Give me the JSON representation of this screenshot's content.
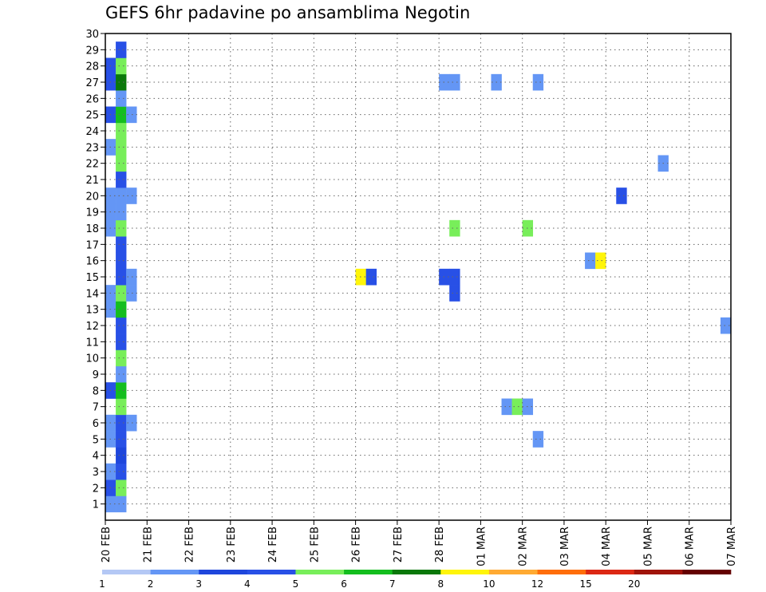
{
  "chart_data": {
    "type": "heatmap",
    "title": "GEFS 6hr padavine po ansamblima Negotin",
    "xlabel": "",
    "ylabel": "",
    "x_tick_labels": [
      "20 FEB",
      "21 FEB",
      "22 FEB",
      "23 FEB",
      "24 FEB",
      "25 FEB",
      "26 FEB",
      "27 FEB",
      "28 FEB",
      "01 MAR",
      "02 MAR",
      "03 MAR",
      "04 MAR",
      "05 MAR",
      "06 MAR",
      "07 MAR"
    ],
    "y_tick_labels": [
      "1",
      "2",
      "3",
      "4",
      "5",
      "6",
      "7",
      "8",
      "9",
      "10",
      "11",
      "12",
      "13",
      "14",
      "15",
      "16",
      "17",
      "18",
      "19",
      "20",
      "21",
      "22",
      "23",
      "24",
      "25",
      "26",
      "27",
      "28",
      "29",
      "30"
    ],
    "xlim": [
      0,
      60
    ],
    "ylim": [
      0,
      30
    ],
    "x_unit": "6-hour step from 20 FEB 00z",
    "y_unit": "ensemble member",
    "grid": true,
    "colorbar": {
      "labels": [
        "1",
        "2",
        "3",
        "4",
        "5",
        "6",
        "7",
        "8",
        "10",
        "12",
        "15",
        "20"
      ],
      "colors": [
        "#b4c8f5",
        "#6496f5",
        "#1e46dc",
        "#2850e6",
        "#78ee5a",
        "#14be1e",
        "#0a780a",
        "#fff50a",
        "#ffaa32",
        "#ff6e0a",
        "#dc2814",
        "#a0140a",
        "#640000"
      ]
    },
    "cells": [
      {
        "x": 0,
        "y": 1,
        "v": 1
      },
      {
        "x": 1,
        "y": 1,
        "v": 1
      },
      {
        "x": 0,
        "y": 2,
        "v": 3
      },
      {
        "x": 1,
        "y": 2,
        "v": 4
      },
      {
        "x": 0,
        "y": 3,
        "v": 1
      },
      {
        "x": 1,
        "y": 3,
        "v": 3
      },
      {
        "x": 1,
        "y": 4,
        "v": 2
      },
      {
        "x": 0,
        "y": 5,
        "v": 1
      },
      {
        "x": 1,
        "y": 5,
        "v": 3
      },
      {
        "x": 0,
        "y": 6,
        "v": 1
      },
      {
        "x": 1,
        "y": 6,
        "v": 3
      },
      {
        "x": 2,
        "y": 6,
        "v": 1
      },
      {
        "x": 1,
        "y": 7,
        "v": 4
      },
      {
        "x": 0,
        "y": 8,
        "v": 3
      },
      {
        "x": 1,
        "y": 8,
        "v": 5
      },
      {
        "x": 1,
        "y": 9,
        "v": 1
      },
      {
        "x": 1,
        "y": 10,
        "v": 4
      },
      {
        "x": 1,
        "y": 11,
        "v": 3
      },
      {
        "x": 1,
        "y": 12,
        "v": 3
      },
      {
        "x": 0,
        "y": 13,
        "v": 1
      },
      {
        "x": 1,
        "y": 13,
        "v": 5
      },
      {
        "x": 0,
        "y": 14,
        "v": 1
      },
      {
        "x": 1,
        "y": 14,
        "v": 4
      },
      {
        "x": 2,
        "y": 14,
        "v": 1
      },
      {
        "x": 1,
        "y": 15,
        "v": 3
      },
      {
        "x": 2,
        "y": 15,
        "v": 1
      },
      {
        "x": 1,
        "y": 16,
        "v": 3
      },
      {
        "x": 1,
        "y": 17,
        "v": 3
      },
      {
        "x": 0,
        "y": 18,
        "v": 1
      },
      {
        "x": 1,
        "y": 18,
        "v": 4
      },
      {
        "x": 0,
        "y": 19,
        "v": 1
      },
      {
        "x": 1,
        "y": 19,
        "v": 1
      },
      {
        "x": 0,
        "y": 20,
        "v": 1
      },
      {
        "x": 1,
        "y": 20,
        "v": 1
      },
      {
        "x": 2,
        "y": 20,
        "v": 1
      },
      {
        "x": 1,
        "y": 21,
        "v": 3
      },
      {
        "x": 1,
        "y": 22,
        "v": 4
      },
      {
        "x": 0,
        "y": 23,
        "v": 1
      },
      {
        "x": 1,
        "y": 23,
        "v": 4
      },
      {
        "x": 1,
        "y": 24,
        "v": 4
      },
      {
        "x": 0,
        "y": 25,
        "v": 3
      },
      {
        "x": 1,
        "y": 25,
        "v": 5
      },
      {
        "x": 2,
        "y": 25,
        "v": 1
      },
      {
        "x": 1,
        "y": 26,
        "v": 1
      },
      {
        "x": 0,
        "y": 27,
        "v": 3
      },
      {
        "x": 1,
        "y": 27,
        "v": 6
      },
      {
        "x": 0,
        "y": 28,
        "v": 3
      },
      {
        "x": 1,
        "y": 28,
        "v": 4
      },
      {
        "x": 1,
        "y": 29,
        "v": 3
      },
      {
        "x": 32,
        "y": 27,
        "v": 1
      },
      {
        "x": 33,
        "y": 27,
        "v": 1
      },
      {
        "x": 37,
        "y": 27,
        "v": 1
      },
      {
        "x": 41,
        "y": 27,
        "v": 1
      },
      {
        "x": 53,
        "y": 22,
        "v": 1
      },
      {
        "x": 49,
        "y": 20,
        "v": 3
      },
      {
        "x": 40,
        "y": 18,
        "v": 4
      },
      {
        "x": 33,
        "y": 18,
        "v": 4
      },
      {
        "x": 46,
        "y": 16,
        "v": 1
      },
      {
        "x": 47,
        "y": 16,
        "v": 7
      },
      {
        "x": 32,
        "y": 15,
        "v": 3
      },
      {
        "x": 33,
        "y": 15,
        "v": 3
      },
      {
        "x": 24,
        "y": 15,
        "v": 7
      },
      {
        "x": 25,
        "y": 15,
        "v": 3
      },
      {
        "x": 33,
        "y": 14,
        "v": 3
      },
      {
        "x": 59,
        "y": 12,
        "v": 1
      },
      {
        "x": 38,
        "y": 7,
        "v": 1
      },
      {
        "x": 39,
        "y": 7,
        "v": 4
      },
      {
        "x": 40,
        "y": 7,
        "v": 1
      },
      {
        "x": 41,
        "y": 5,
        "v": 1
      }
    ]
  }
}
